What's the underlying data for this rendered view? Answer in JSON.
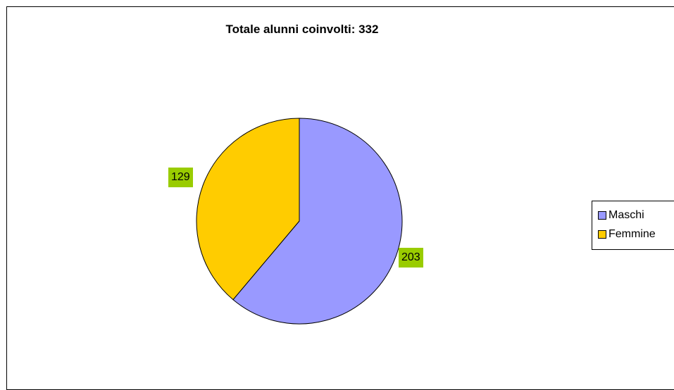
{
  "chart_data": {
    "type": "pie",
    "title": "Totale alunni coinvolti: 332",
    "categories": [
      "Maschi",
      "Femmine"
    ],
    "values": [
      203,
      129
    ],
    "colors": [
      "#9999ff",
      "#ffcc00"
    ],
    "data_label_background": "#99cc00",
    "legend_position": "right"
  }
}
